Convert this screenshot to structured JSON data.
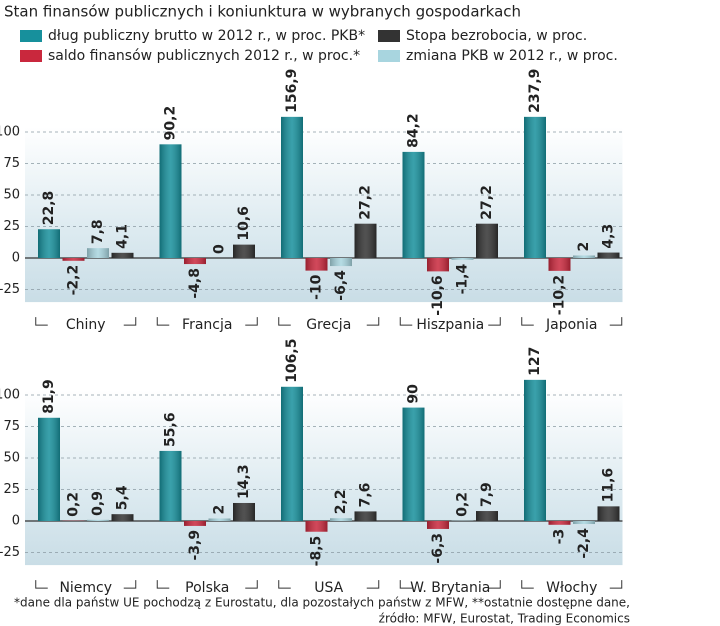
{
  "title": "Stan finansów publicznych i koniunktura w wybranych gospodarkach",
  "footnote": [
    "*dane dla państw UE pochodzą z Eurostatu, dla pozostałych państw z MFW, **ostatnie dostępne dane,",
    "źródło: MFW, Eurostat, Trading Economics"
  ],
  "chart_data": [
    {
      "type": "bar",
      "categories": [
        "Chiny",
        "Francja",
        "Grecja",
        "Hiszpania",
        "Japonia"
      ],
      "ylim": [
        -35,
        112
      ],
      "yticks": [
        -25,
        0,
        25,
        50,
        75,
        100
      ],
      "grid": true,
      "series": [
        {
          "name": "dług publiczny brutto w 2012 r., w proc. PKB*",
          "color": "#17909c",
          "values": [
            22.8,
            90.2,
            156.9,
            84.2,
            237.9
          ],
          "value_labels": [
            "22,8",
            "90,2",
            "156,9",
            "84,2",
            "237,9"
          ]
        },
        {
          "name": "saldo finansów publicznych 2012 r., w proc.*",
          "color": "#c9283d",
          "values": [
            -2.2,
            -4.8,
            -10,
            -10.6,
            -10.2
          ],
          "value_labels": [
            "-2,2",
            "-4,8",
            "-10",
            "-10,6",
            "-10,2"
          ]
        },
        {
          "name": "zmiana PKB w 2012 r., w proc.",
          "color": "#a8d5df",
          "values": [
            7.8,
            0,
            -6.4,
            -1.4,
            2
          ],
          "value_labels": [
            "7,8",
            "0",
            "-6,4",
            "-1,4",
            "2"
          ]
        },
        {
          "name": "Stopa bezrobocia, w proc.",
          "color": "#333333",
          "values": [
            4.1,
            10.6,
            27.2,
            27.2,
            4.3
          ],
          "value_labels": [
            "4,1",
            "10,6",
            "27,2",
            "27,2",
            "4,3"
          ]
        }
      ]
    },
    {
      "type": "bar",
      "categories": [
        "Niemcy",
        "Polska",
        "USA",
        "W. Brytania",
        "Włochy"
      ],
      "ylim": [
        -35,
        112
      ],
      "yticks": [
        -25,
        0,
        25,
        50,
        75,
        100
      ],
      "grid": true,
      "series": [
        {
          "values": [
            81.9,
            55.6,
            106.5,
            90,
            127
          ],
          "value_labels": [
            "81,9",
            "55,6",
            "106,5",
            "90",
            "127"
          ]
        },
        {
          "values": [
            0.2,
            -3.9,
            -8.5,
            -6.3,
            -3
          ],
          "value_labels": [
            "0,2",
            "-3,9",
            "-8,5",
            "-6,3",
            "-3"
          ]
        },
        {
          "values": [
            0.9,
            2,
            2.2,
            0.2,
            -2.4
          ],
          "value_labels": [
            "0,9",
            "2",
            "2,2",
            "0,2",
            "-2,4"
          ]
        },
        {
          "values": [
            5.4,
            14.3,
            7.6,
            7.9,
            11.6
          ],
          "value_labels": [
            "5,4",
            "14,3",
            "7,6",
            "7,9",
            "11,6"
          ]
        }
      ]
    }
  ]
}
